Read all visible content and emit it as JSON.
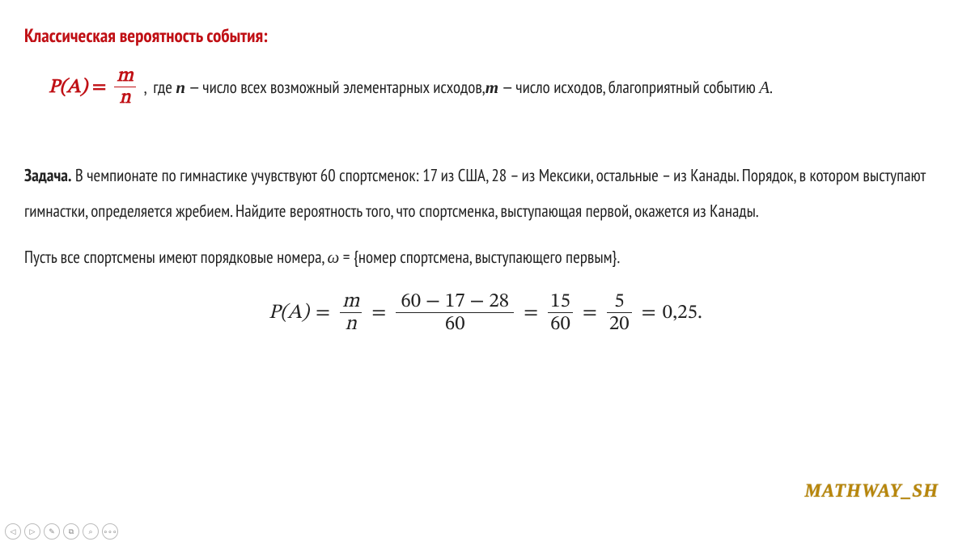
{
  "title": "Классическая вероятность события:",
  "formula": {
    "lhs": "P(A)",
    "eq": "=",
    "frac": {
      "num": "m",
      "den": "n"
    },
    "desc_prefix": ",  где ",
    "var_n": "n",
    "dash": " —  ",
    "desc_n": "число всех возможный элементарных исходов,",
    "var_m": "m",
    "desc_m": " число исходов, благоприятный событию ",
    "var_A": "A",
    "period": "."
  },
  "problem": {
    "label": "Задача.",
    "text": " В чемпионате по гимнастике учувствуют 60 спортсменок: 17 из США, 28 – из Мексики, остальные – из Канады. Порядок, в котором выступают гимнастки, определяется жребием. Найдите вероятность того, что спортсменка, выступающая первой, окажется из Канады."
  },
  "solution_line": {
    "prefix": "Пусть все спортсмены имеют порядковые номера,  ",
    "omega": "ω",
    "eq": " = ",
    "set": "{номер спортсмена, выступающего первым}",
    "period": "."
  },
  "big_formula": {
    "lhs": "P(A)",
    "frac1": {
      "num": "m",
      "den": "n"
    },
    "frac2": {
      "num": "60 − 17 − 28",
      "den": "60"
    },
    "frac3": {
      "num": "15",
      "den": "60"
    },
    "frac4": {
      "num": "5",
      "den": "20"
    },
    "result": "0,25."
  },
  "watermark": "MATHWAY_SH",
  "nav": {
    "prev": "◁",
    "next": "▷",
    "pen": "✎",
    "copy": "⧉",
    "zoom": "⌕",
    "more": "∘∘∘"
  },
  "colors": {
    "accent": "#c01015",
    "body": "#222222",
    "wm": "#b8860b"
  }
}
